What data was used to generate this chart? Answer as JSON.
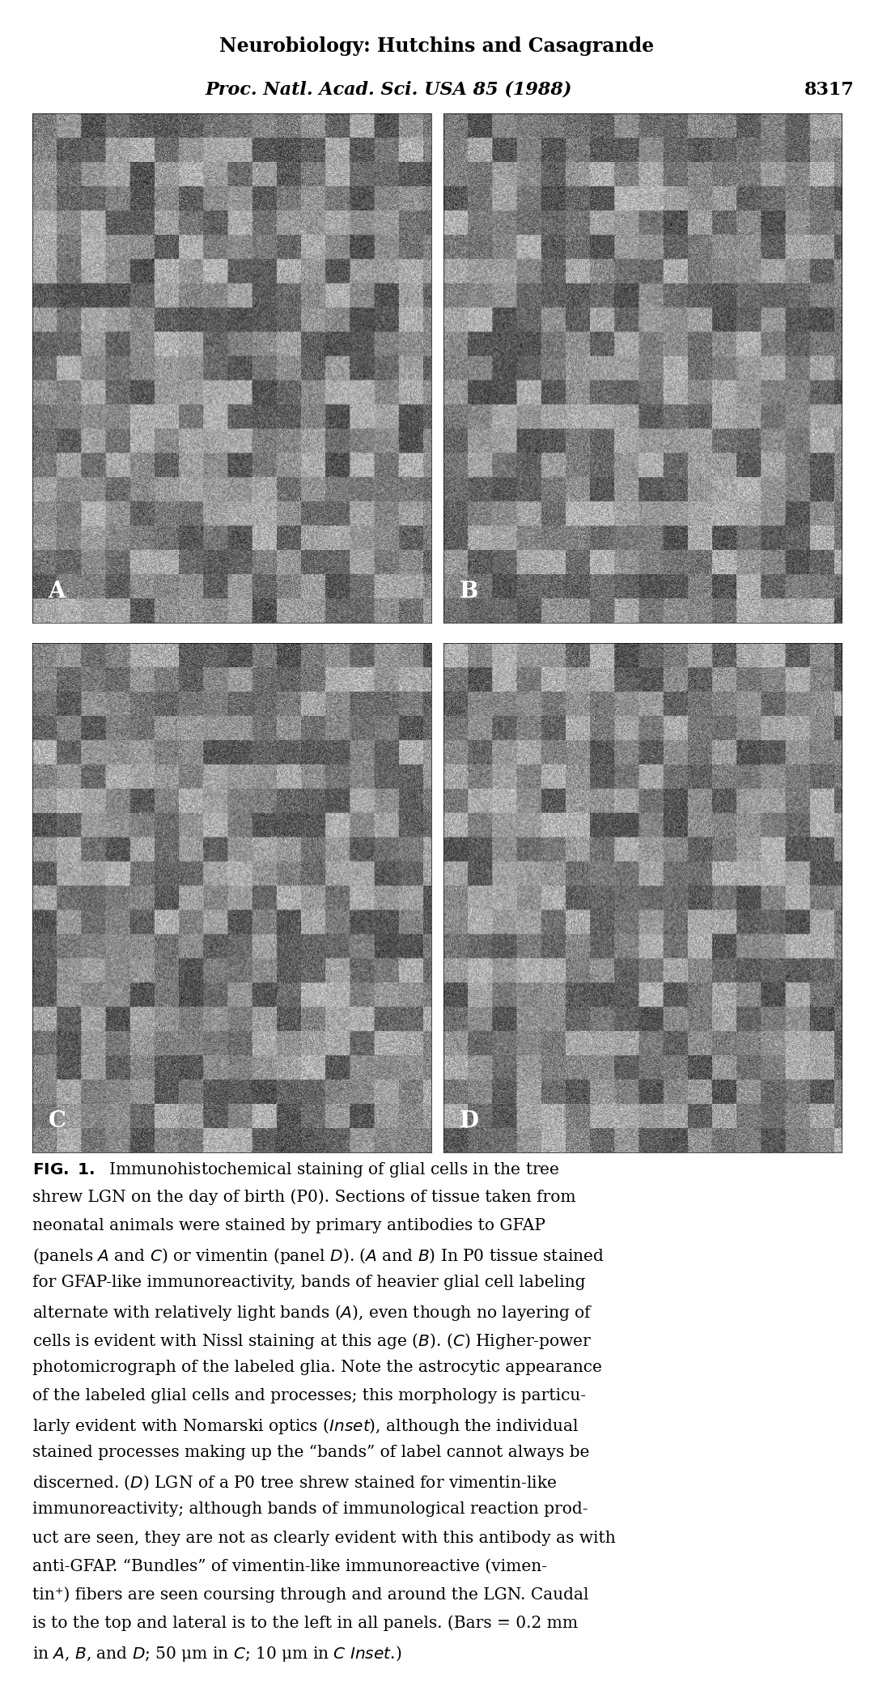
{
  "header_line1": "Neurobiology: Hutchins and Casagrande",
  "header_line2": "Proc. Natl. Acad. Sci. USA 85 (1988)",
  "page_number": "8317",
  "panel_labels": [
    "A",
    "B",
    "C",
    "D"
  ],
  "caption_bold": "FIG. 1.",
  "caption_text": "  Immunohistochemical staining of glial cells in the tree shrew LGN on the day of birth (P0). Sections of tissue taken from neonatal animals were stained by primary antibodies to GFAP (panels Ä and Č) or vimentin (panel Đ). (Ä and B) In P0 tissue stained for GFAP-like immunoreactivity, bands of heavier glial cell labeling alternate with relatively light bands (Ä), even though no layering of cells is evident with Nissl staining at this age (B). (Č) Higher-power photomicrograph of the labeled glia. Note the astrocytic appearance of the labeled glial cells and processes; this morphology is particularly evident with Nomarski optics (Îcset), although the individual stained processes making up the “bands” of label cannot always be discerned. (Đ) LGN of a P0 tree shrew stained for vimentin-like immunoreactivity; although bands of immunological reaction product are seen, they are not as clearly evident with this antibody as with anti-GFAP. “Bundles” of vimentin-like immunoreactive (vimentin⁺) fibers are seen coursing through and around the LGN. Caudal is to the top and lateral is to the left in all panels. (Bars = 0.2 mm in Ä, B, and Đ; 50 μm in Č; 10 μm in Č Ìnset.)",
  "bg_color": "#ffffff",
  "text_color": "#000000",
  "panel_image_colors": {
    "A": "#888888",
    "B": "#999999",
    "C": "#777777",
    "D": "#aaaaaa"
  }
}
